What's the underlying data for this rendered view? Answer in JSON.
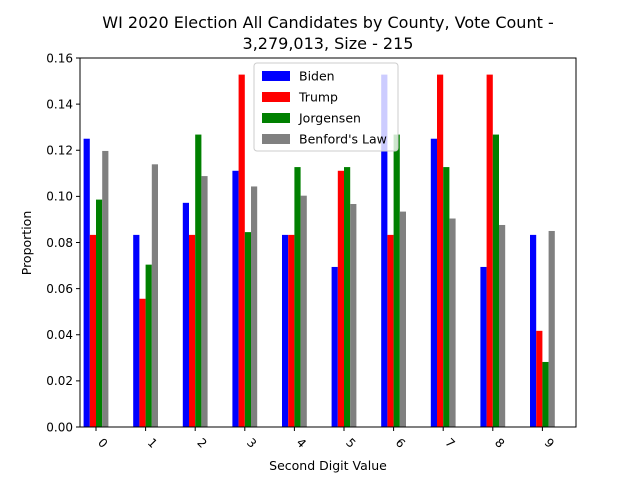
{
  "chart_data": {
    "type": "bar",
    "title_line1": "WI 2020 Election All Candidates by County, Vote Count -",
    "title_line2": "3,279,013, Size - 215",
    "xlabel": "Second Digit Value",
    "ylabel": "Proportion",
    "categories": [
      "0",
      "1",
      "2",
      "3",
      "4",
      "5",
      "6",
      "7",
      "8",
      "9"
    ],
    "ylim": [
      0,
      0.16
    ],
    "yticks": [
      "0.00",
      "0.02",
      "0.04",
      "0.06",
      "0.08",
      "0.10",
      "0.12",
      "0.14",
      "0.16"
    ],
    "grid": false,
    "legend_position": "top-center",
    "series": [
      {
        "name": "Biden",
        "color": "#0000ff",
        "values": [
          0.125,
          0.0833,
          0.0972,
          0.1111,
          0.0833,
          0.0694,
          0.1528,
          0.125,
          0.0694,
          0.0833
        ]
      },
      {
        "name": "Trump",
        "color": "#ff0000",
        "values": [
          0.0833,
          0.0556,
          0.0833,
          0.1528,
          0.0833,
          0.1111,
          0.0833,
          0.1528,
          0.1528,
          0.0417
        ]
      },
      {
        "name": "Jorgensen",
        "color": "#008000",
        "values": [
          0.0986,
          0.0704,
          0.1268,
          0.0845,
          0.1127,
          0.1127,
          0.1268,
          0.1127,
          0.1268,
          0.0282
        ]
      },
      {
        "name": "Benford's Law",
        "color": "#808080",
        "values": [
          0.1197,
          0.1139,
          0.1088,
          0.1043,
          0.1003,
          0.0967,
          0.0934,
          0.0904,
          0.0876,
          0.085
        ]
      }
    ]
  }
}
